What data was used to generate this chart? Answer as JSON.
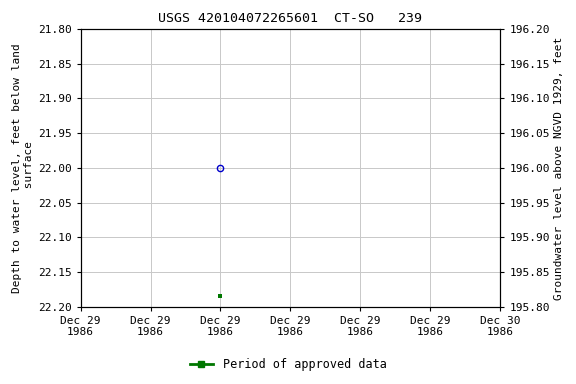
{
  "title": "USGS 420104072265601  CT-SO   239",
  "ylabel_left": "Depth to water level, feet below land\n surface",
  "ylabel_right": "Groundwater level above NGVD 1929, feet",
  "ylim_left": [
    21.8,
    22.2
  ],
  "ylim_right": [
    195.8,
    196.2
  ],
  "xlim": [
    725929.0,
    725930.0
  ],
  "x_data_circle": 725929.333,
  "y_data_circle": 22.0,
  "x_data_square": 725929.333,
  "y_data_square": 22.185,
  "circle_color": "#0000cc",
  "square_color": "#007700",
  "grid_color": "#c8c8c8",
  "background_color": "#ffffff",
  "legend_label": "Period of approved data",
  "x_tick_labels": [
    "Dec 29\n1986",
    "Dec 29\n1986",
    "Dec 29\n1986",
    "Dec 29\n1986",
    "Dec 29\n1986",
    "Dec 29\n1986",
    "Dec 30\n1986"
  ],
  "y_left_ticks": [
    21.8,
    21.85,
    21.9,
    21.95,
    22.0,
    22.05,
    22.1,
    22.15,
    22.2
  ],
  "y_right_ticks": [
    196.2,
    196.15,
    196.1,
    196.05,
    196.0,
    195.95,
    195.9,
    195.85,
    195.8
  ],
  "font_size_title": 9.5,
  "font_size_ticks": 8,
  "font_size_label": 8,
  "font_size_legend": 8.5
}
